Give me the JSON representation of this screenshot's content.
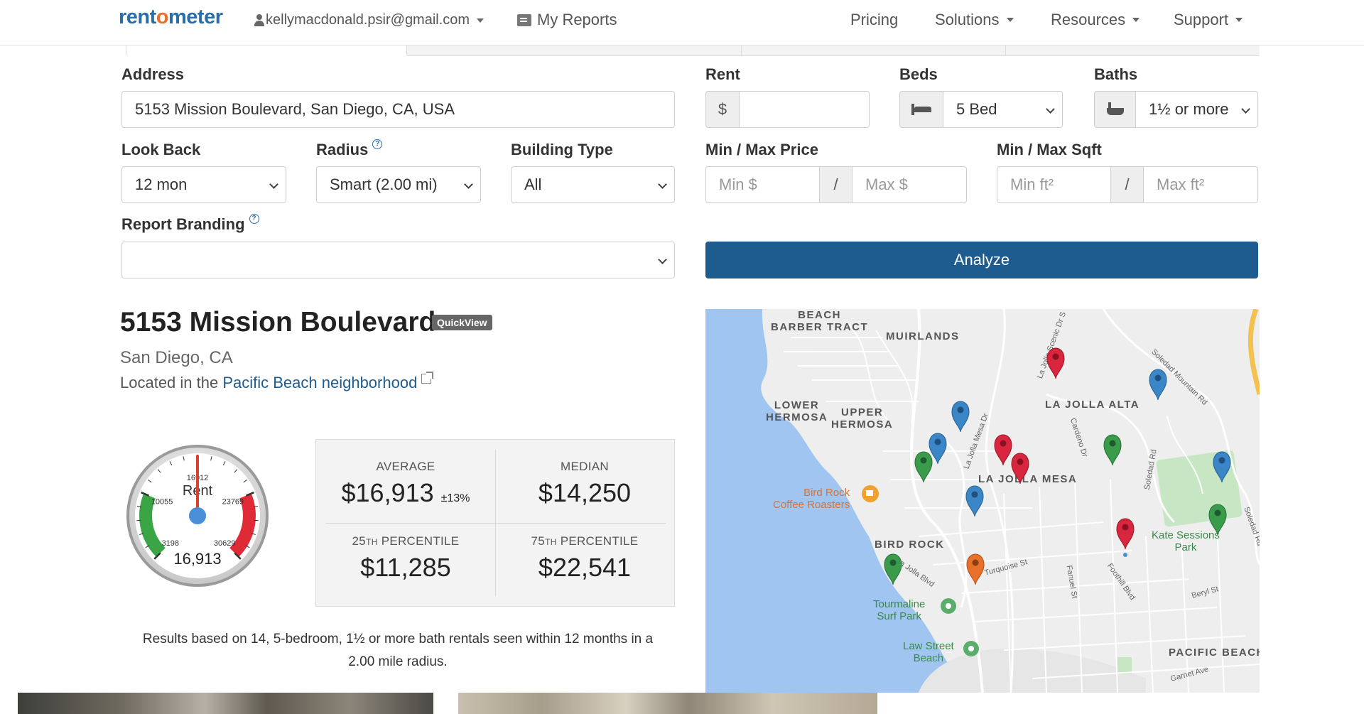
{
  "navbar": {
    "logo_pre": "rent",
    "logo_o": "o",
    "logo_post": "meter",
    "user_email": "kellymacdonald.psir@gmail.com",
    "my_reports": "My Reports",
    "pricing": "Pricing",
    "solutions": "Solutions",
    "resources": "Resources",
    "support": "Support"
  },
  "form": {
    "address_label": "Address",
    "address_value": "5153 Mission Boulevard, San Diego, CA, USA",
    "rent_label": "Rent",
    "rent_prefix": "$",
    "rent_value": "",
    "beds_label": "Beds",
    "beds_value": "5 Bed",
    "baths_label": "Baths",
    "baths_value": "1½ or more",
    "lookback_label": "Look Back",
    "lookback_value": "12 mon",
    "radius_label": "Radius",
    "radius_value": "Smart (2.00 mi)",
    "building_label": "Building Type",
    "building_value": "All",
    "price_label": "Min / Max Price",
    "min_price_placeholder": "Min $",
    "max_price_placeholder": "Max $",
    "sqft_label": "Min / Max Sqft",
    "min_sqft_placeholder": "Min ft²",
    "max_sqft_placeholder": "Max ft²",
    "separator": "/",
    "branding_label": "Report Branding",
    "branding_value": "",
    "help_glyph": "?",
    "analyze_label": "Analyze"
  },
  "result": {
    "title": "5153 Mission Boulevard",
    "badge": "QuickView",
    "city": "San Diego, CA",
    "located_prefix": "Located in the ",
    "neighborhood": "Pacific Beach neighborhood",
    "gauge": {
      "label": "Rent",
      "value": "16,913",
      "value_numeric": 16913,
      "min": 3198,
      "max": 30629,
      "ticks": [
        "3198",
        "10055",
        "16912",
        "23769",
        "30629"
      ]
    },
    "stats": {
      "average_label": "AVERAGE",
      "average_value": "$16,913",
      "average_pm": "±13%",
      "median_label": "MEDIAN",
      "median_value": "$14,250",
      "p25_num": "25",
      "p25_sup": "TH",
      "p25_rest": " PERCENTILE",
      "p25_value": "$11,285",
      "p75_num": "75",
      "p75_sup": "TH",
      "p75_rest": " PERCENTILE",
      "p75_value": "$22,541"
    },
    "note": "Results based on 14, 5-bedroom, 1½ or more bath rentals seen within 12 months in a 2.00 mile radius."
  },
  "map": {
    "areas": [
      "BEACH\nBARBER TRACT",
      "MUIRLANDS",
      "LOWER\nHERMOSA",
      "UPPER\nHERMOSA",
      "LA JOLLA ALTA",
      "LA JOLLA MESA",
      "BIRD ROCK",
      "PACIFIC BEACH"
    ],
    "streets": [
      "La Jolla Scenic Dr S",
      "Soledad Mountain Rd",
      "La Jolla Mesa Dr",
      "Cardeno Dr",
      "Soledad Rd",
      "Soledad Rd",
      "La Jolla Blvd",
      "Turquoise St",
      "Fanuel St",
      "Foothill Blvd",
      "Beryl St",
      "Garnet Ave"
    ],
    "pois": [
      "Bird Rock\nCoffee Roasters",
      "Kate Sessions\nPark",
      "Tourmaline\nSurf Park",
      "Law Street\nBeach"
    ],
    "colors": {
      "red": "#d7263d",
      "blue": "#3b86c6",
      "green": "#3a9c4a",
      "orange": "#e8702a"
    }
  }
}
